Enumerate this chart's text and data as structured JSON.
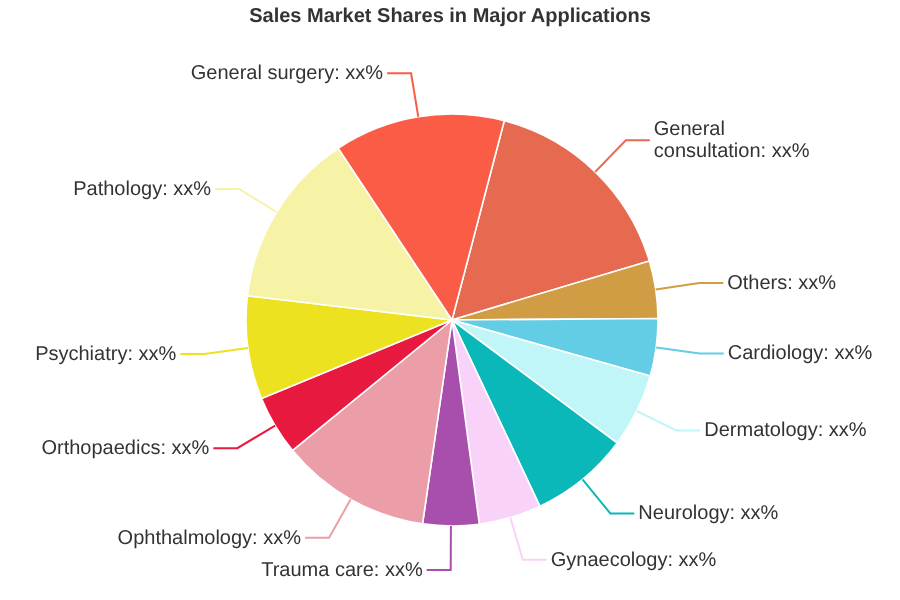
{
  "chart_data": {
    "type": "pie",
    "title": "Sales Market Shares in Major Applications",
    "categories": [
      "General consultation",
      "Others",
      "Cardiology",
      "Dermatology",
      "Neurology",
      "Gynaecology",
      "Trauma care",
      "Ophthalmology",
      "Orthopaedics",
      "Psychiatry",
      "Pathology",
      "General surgery"
    ],
    "values": [
      16.3,
      4.5,
      4.5,
      5.8,
      7.8,
      4.9,
      4.4,
      11.8,
      4.7,
      8.1,
      13.8,
      13.4
    ],
    "colors": [
      "#e66a4f",
      "#d09d45",
      "#63cde6",
      "#c0f6f7",
      "#0ab8b9",
      "#f9d2f9",
      "#a84fae",
      "#ec9ea8",
      "#e8193f",
      "#ede21f",
      "#f7f3a6",
      "#fa5c46"
    ],
    "value_labels": [
      "xx%",
      "xx%",
      "xx%",
      "xx%",
      "xx%",
      "xx%",
      "xx%",
      "xx%",
      "xx%",
      "xx%",
      "xx%",
      "xx%"
    ]
  }
}
